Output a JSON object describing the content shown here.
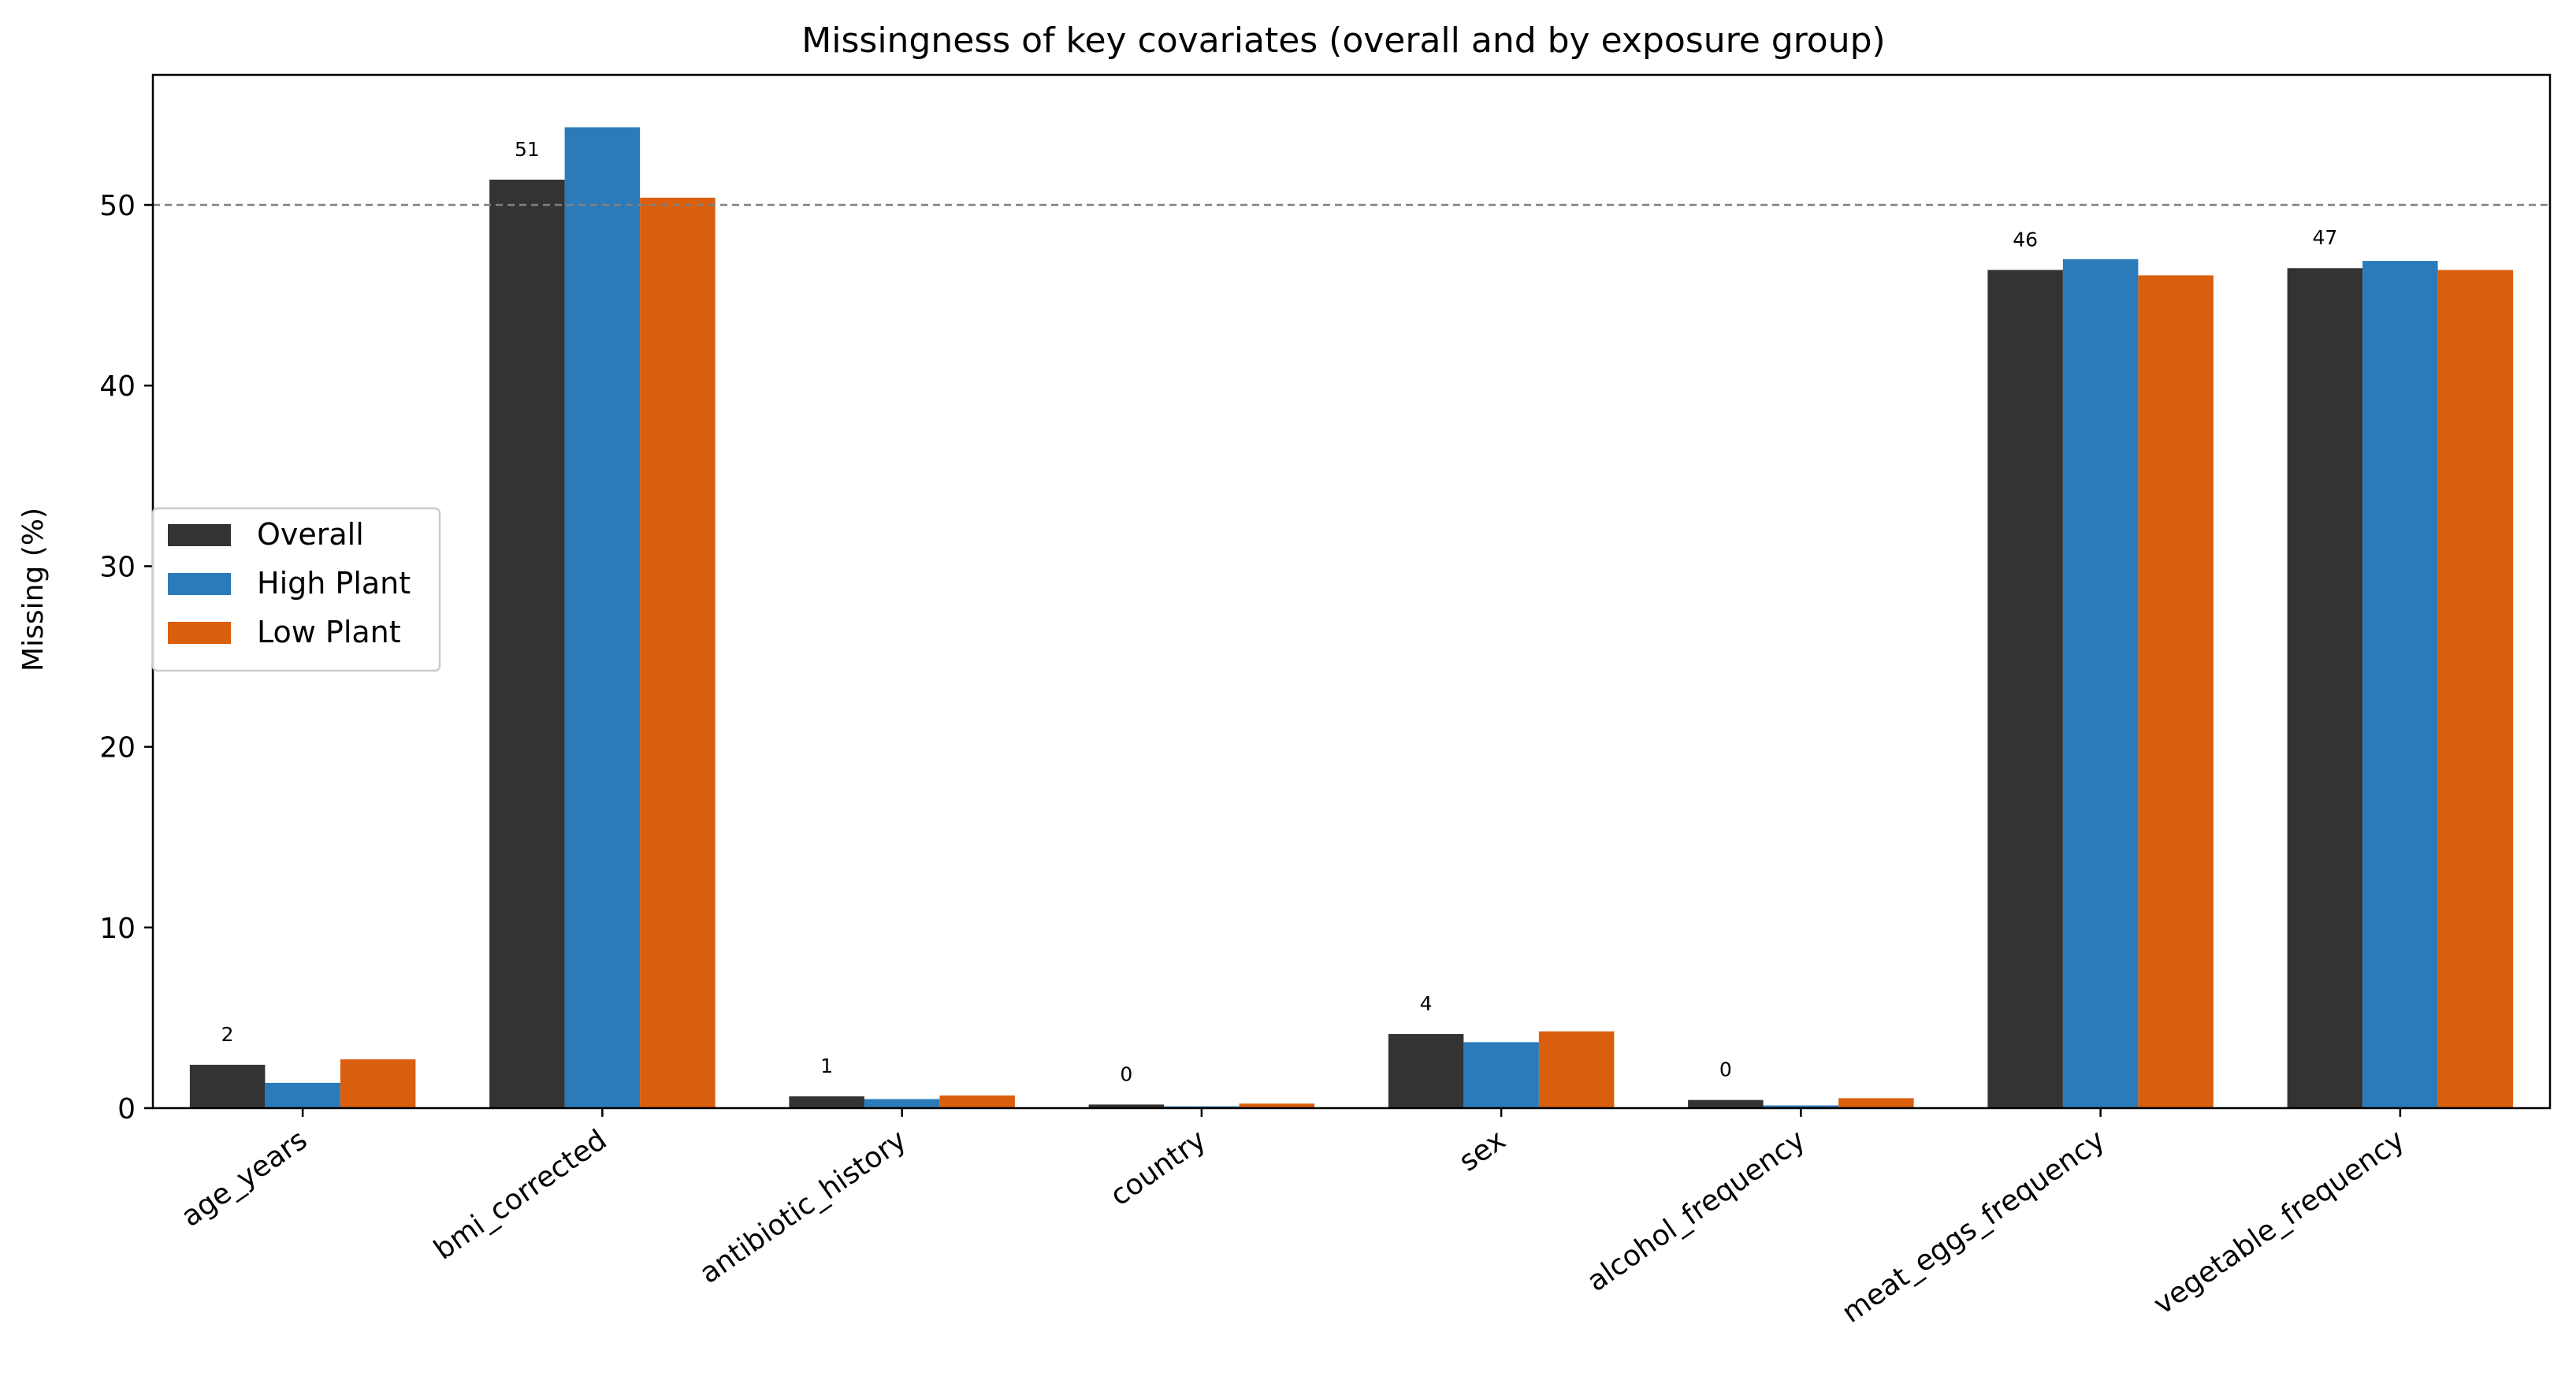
{
  "chart_data": {
    "type": "bar",
    "title": "Missingness of key covariates (overall and by exposure group)",
    "xlabel": "",
    "ylabel": "Missing (%)",
    "ylim": [
      0,
      57.2
    ],
    "yticks": [
      0,
      10,
      20,
      30,
      40,
      50
    ],
    "reference_line": {
      "y": 50,
      "style": "dashed",
      "color": "#808080"
    },
    "legend_position": "center-left",
    "grid": false,
    "categories": [
      "age_years",
      "bmi_corrected",
      "antibiotic_history",
      "country",
      "sex",
      "alcohol_frequency",
      "meat_eggs_frequency",
      "vegetable_frequency"
    ],
    "series": [
      {
        "name": "Overall",
        "color": "#333333",
        "values": [
          2.4,
          51.4,
          0.65,
          0.2,
          4.1,
          0.45,
          46.4,
          46.5
        ]
      },
      {
        "name": "High Plant",
        "color": "#2b7bba",
        "values": [
          1.4,
          54.3,
          0.5,
          0.1,
          3.65,
          0.15,
          47.0,
          46.9
        ]
      },
      {
        "name": "Low Plant",
        "color": "#d95f0e",
        "values": [
          2.7,
          50.4,
          0.7,
          0.25,
          4.25,
          0.55,
          46.1,
          46.4
        ]
      }
    ],
    "data_labels": [
      "2",
      "51",
      "1",
      "0",
      "4",
      "0",
      "46",
      "47"
    ]
  }
}
